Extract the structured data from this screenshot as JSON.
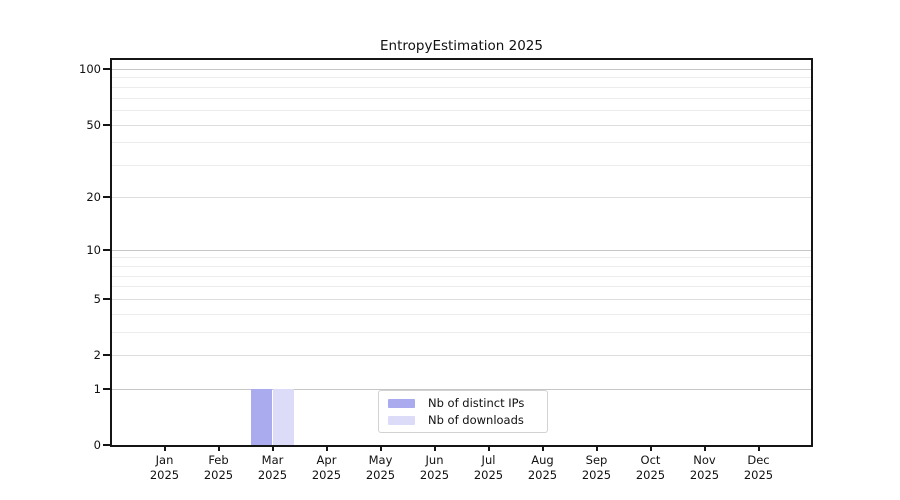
{
  "chart_data": {
    "type": "bar",
    "title": "EntropyEstimation 2025",
    "xlabel": "",
    "ylabel": "",
    "yscale": "log1p",
    "ylim": [
      0,
      111
    ],
    "grid": "horizontal",
    "y_ticks": [
      0,
      1,
      2,
      5,
      10,
      20,
      50,
      100
    ],
    "y_minor_gridlines": [
      3,
      4,
      6,
      7,
      8,
      9,
      30,
      40,
      60,
      70,
      80,
      90
    ],
    "categories": [
      {
        "month": "Jan",
        "year": "2025"
      },
      {
        "month": "Feb",
        "year": "2025"
      },
      {
        "month": "Mar",
        "year": "2025"
      },
      {
        "month": "Apr",
        "year": "2025"
      },
      {
        "month": "May",
        "year": "2025"
      },
      {
        "month": "Jun",
        "year": "2025"
      },
      {
        "month": "Jul",
        "year": "2025"
      },
      {
        "month": "Aug",
        "year": "2025"
      },
      {
        "month": "Sep",
        "year": "2025"
      },
      {
        "month": "Oct",
        "year": "2025"
      },
      {
        "month": "Nov",
        "year": "2025"
      },
      {
        "month": "Dec",
        "year": "2025"
      }
    ],
    "series": [
      {
        "name": "Nb of distinct IPs",
        "color": "#aaaaef",
        "values": [
          0,
          0,
          1,
          0,
          0,
          0,
          0,
          0,
          0,
          0,
          0,
          0
        ]
      },
      {
        "name": "Nb of downloads",
        "color": "#dcdcf8",
        "values": [
          0,
          0,
          1,
          0,
          0,
          0,
          0,
          0,
          0,
          0,
          0,
          0
        ]
      }
    ],
    "legend_position": "lower center",
    "colors": {
      "grid_major": "#c6c6c6",
      "grid_tick": "#dddddd",
      "grid_minor": "#ececec",
      "spine": "#151515",
      "text": "#111111",
      "background": "#ffffff"
    }
  }
}
